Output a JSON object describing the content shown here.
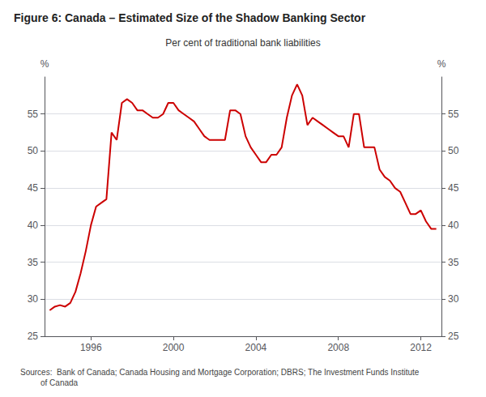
{
  "chart_data": {
    "type": "line",
    "title": "Figure 6: Canada – Estimated Size of the Shadow Banking Sector",
    "subtitle": "Per cent of traditional bank liabilities",
    "source": "Sources:  Bank of Canada; Canada Housing and Mortgage Corporation; DBRS; The Investment Funds Institute\n         of Canada",
    "ylabel": "%",
    "y2label": "%",
    "color": "#cc0000",
    "grid": true,
    "x": [
      1994.0,
      1994.25,
      1994.5,
      1994.75,
      1995.0,
      1995.25,
      1995.5,
      1995.75,
      1996.0,
      1996.25,
      1996.5,
      1996.75,
      1997.0,
      1997.25,
      1997.5,
      1997.75,
      1998.0,
      1998.25,
      1998.5,
      1998.75,
      1999.0,
      1999.25,
      1999.5,
      1999.75,
      2000.0,
      2000.25,
      2000.5,
      2000.75,
      2001.0,
      2001.25,
      2001.5,
      2001.75,
      2002.0,
      2002.25,
      2002.5,
      2002.75,
      2003.0,
      2003.25,
      2003.5,
      2003.75,
      2004.0,
      2004.25,
      2004.5,
      2004.75,
      2005.0,
      2005.25,
      2005.5,
      2005.75,
      2006.0,
      2006.25,
      2006.5,
      2006.75,
      2007.0,
      2007.25,
      2007.5,
      2007.75,
      2008.0,
      2008.25,
      2008.5,
      2008.75,
      2009.0,
      2009.25,
      2009.5,
      2009.75,
      2010.0,
      2010.25,
      2010.5,
      2010.75,
      2011.0,
      2011.25,
      2011.5,
      2011.75,
      2012.0,
      2012.25,
      2012.5,
      2012.75
    ],
    "values": [
      28.5,
      29.0,
      29.2,
      29.0,
      29.5,
      31.0,
      33.5,
      36.5,
      40.0,
      42.5,
      43.0,
      43.5,
      52.5,
      51.5,
      56.5,
      57.0,
      56.5,
      55.5,
      55.5,
      55.0,
      54.5,
      54.5,
      55.0,
      56.5,
      56.5,
      55.5,
      55.0,
      54.5,
      54.0,
      53.0,
      52.0,
      51.5,
      51.5,
      51.5,
      51.5,
      55.5,
      55.5,
      55.0,
      52.0,
      50.5,
      49.5,
      48.5,
      48.5,
      49.5,
      49.5,
      50.5,
      54.5,
      57.5,
      59.0,
      57.5,
      53.5,
      54.5,
      54.0,
      53.5,
      53.0,
      52.5,
      52.0,
      52.0,
      50.5,
      55.0,
      55.0,
      50.5,
      50.5,
      50.5,
      47.5,
      46.5,
      46.0,
      45.0,
      44.5,
      43.0,
      41.5,
      41.5,
      42.0,
      40.5,
      39.5,
      39.5
    ],
    "xlim": [
      1993.75,
      2013.0
    ],
    "xticks": [
      1996,
      2000,
      2004,
      2008,
      2012
    ],
    "ylim": [
      25,
      60
    ],
    "yticks": [
      25,
      30,
      35,
      40,
      45,
      50,
      55
    ],
    "y2lim": [
      25,
      60
    ],
    "y2ticks": [
      25,
      30,
      35,
      40,
      45,
      50,
      55
    ]
  }
}
